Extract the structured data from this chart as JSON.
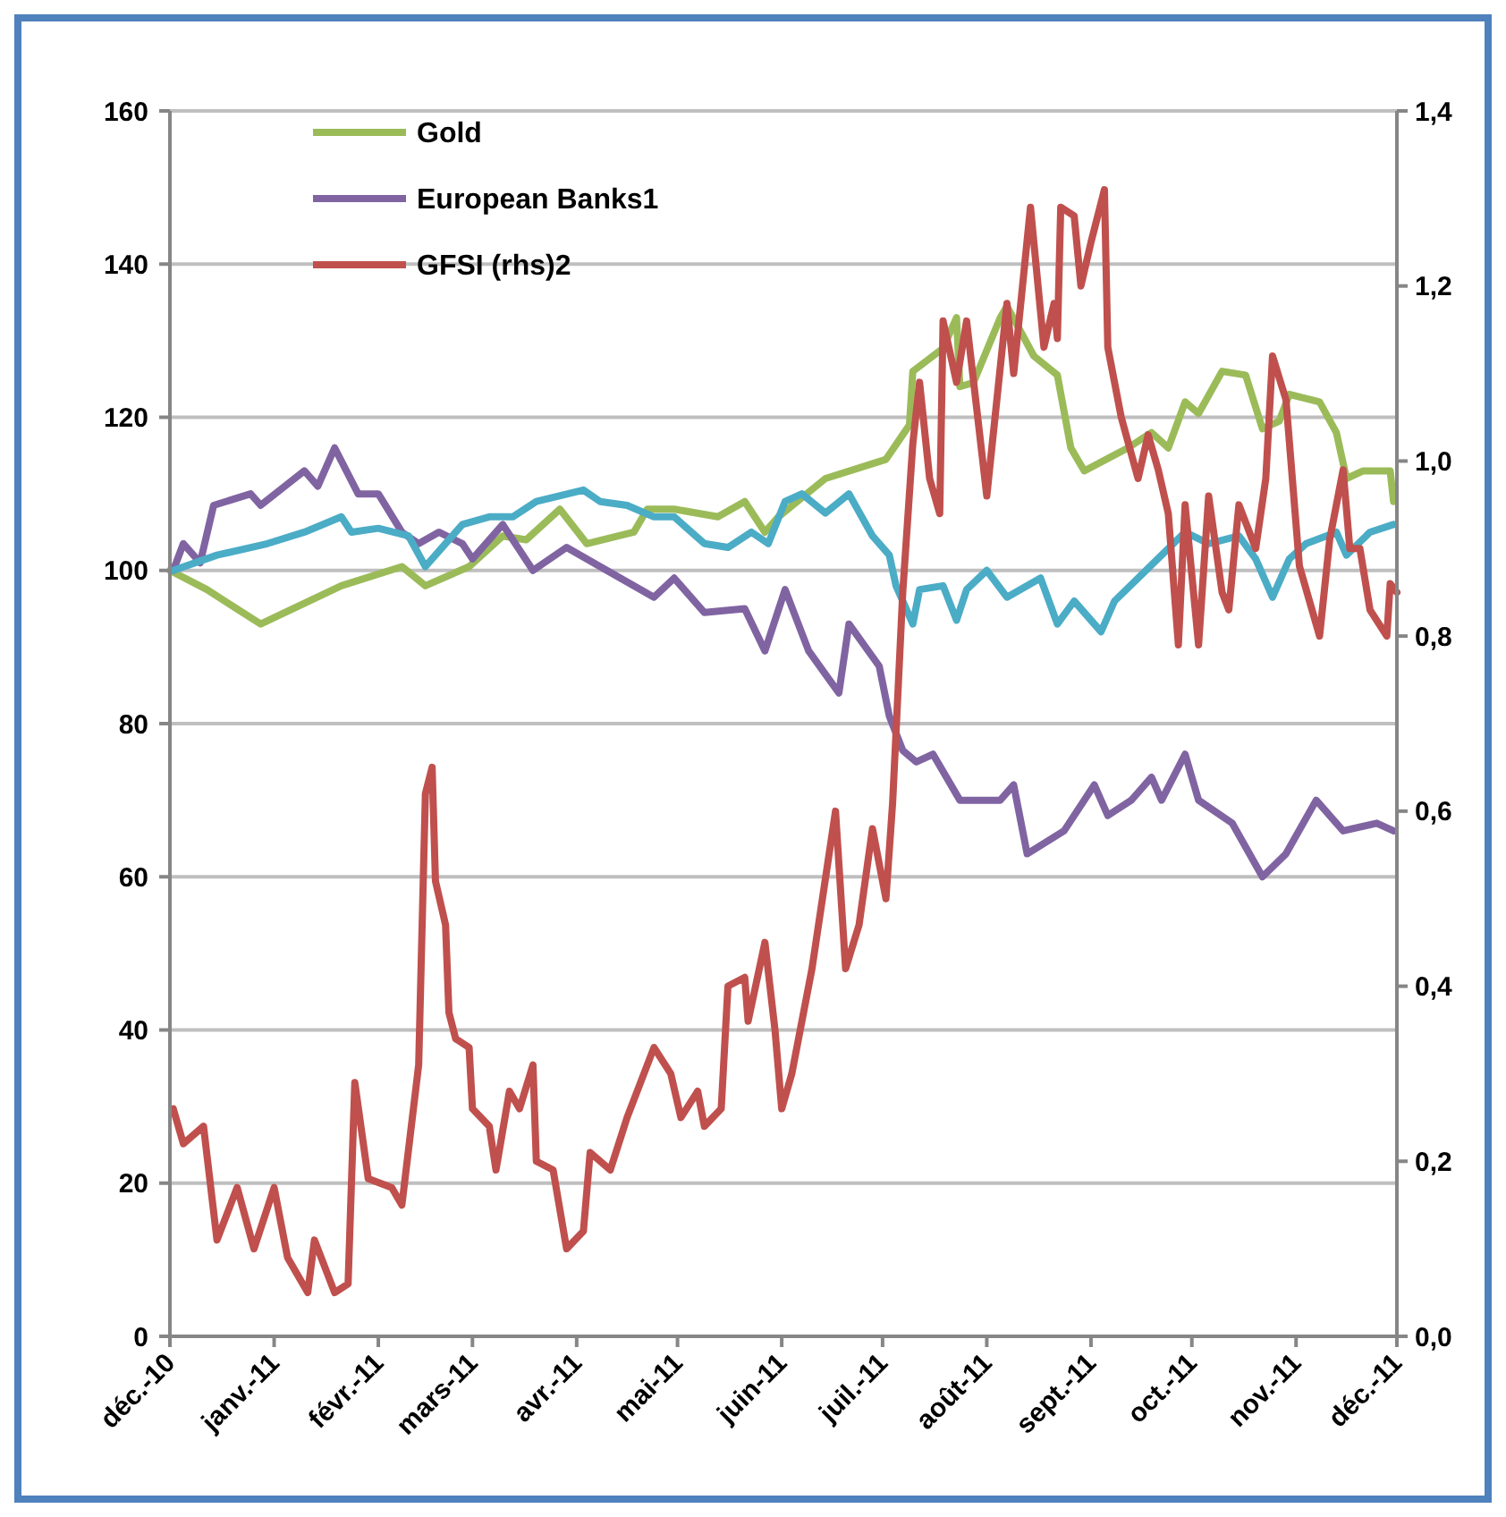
{
  "chart_data": {
    "type": "line",
    "legend": "top left",
    "grid": "y",
    "line_style": "solid",
    "marker": "none",
    "xlim": [
      "2010-12-01",
      "2011-12-01"
    ],
    "xticks": [
      {
        "value": "2010-12-01",
        "label": "déc.-10"
      },
      {
        "value": "2011-01-01",
        "label": "janv.-11"
      },
      {
        "value": "2011-02-01",
        "label": "févr.-11"
      },
      {
        "value": "2011-03-01",
        "label": "mars-11"
      },
      {
        "value": "2011-04-01",
        "label": "avr.-11"
      },
      {
        "value": "2011-05-01",
        "label": "mai-11"
      },
      {
        "value": "2011-06-01",
        "label": "juin-11"
      },
      {
        "value": "2011-07-01",
        "label": "juil.-11"
      },
      {
        "value": "2011-08-01",
        "label": "août-11"
      },
      {
        "value": "2011-09-01",
        "label": "sept.-11"
      },
      {
        "value": "2011-10-01",
        "label": "oct.-11"
      },
      {
        "value": "2011-11-01",
        "label": "nov.-11"
      },
      {
        "value": "2011-12-01",
        "label": "déc.-11"
      }
    ],
    "ylim": [
      0,
      160
    ],
    "yticks": [
      0,
      20,
      40,
      60,
      80,
      100,
      120,
      140,
      160
    ],
    "y2lim": [
      0,
      1.4
    ],
    "y2ticks": [
      {
        "value": 0,
        "label": "0,0"
      },
      {
        "value": 0.2,
        "label": "0,2"
      },
      {
        "value": 0.4,
        "label": "0,4"
      },
      {
        "value": 0.6,
        "label": "0,6"
      },
      {
        "value": 0.8,
        "label": "0,8"
      },
      {
        "value": 1.0,
        "label": "1,0"
      },
      {
        "value": 1.2,
        "label": "1,2"
      },
      {
        "value": 1.4,
        "label": "1,4"
      }
    ],
    "series": [
      {
        "name": "Gold",
        "color": "#9bbb59",
        "x": [
          "2010-12-01",
          "2010-12-12",
          "2010-12-28",
          "2011-01-21",
          "2011-02-08",
          "2011-02-15",
          "2011-02-28",
          "2011-03-10",
          "2011-03-17",
          "2011-03-27",
          "2011-04-04",
          "2011-04-18",
          "2011-04-22",
          "2011-04-30",
          "2011-05-13",
          "2011-05-21",
          "2011-05-27",
          "2011-05-31",
          "2011-06-14",
          "2011-07-02",
          "2011-07-09",
          "2011-07-10",
          "2011-07-19",
          "2011-07-23",
          "2011-07-24",
          "2011-07-28",
          "2011-08-05",
          "2011-08-07",
          "2011-08-15",
          "2011-08-22",
          "2011-08-26",
          "2011-08-30",
          "2011-09-12",
          "2011-09-19",
          "2011-09-24",
          "2011-09-29",
          "2011-10-03",
          "2011-10-10",
          "2011-10-17",
          "2011-10-22",
          "2011-10-27",
          "2011-10-30",
          "2011-11-08",
          "2011-11-13",
          "2011-11-16",
          "2011-11-21",
          "2011-11-29",
          "2011-11-30"
        ],
        "values": [
          100,
          97.5,
          93,
          98,
          100.5,
          98,
          100.5,
          104.5,
          104,
          108,
          103.5,
          105,
          108,
          108,
          107,
          109,
          105,
          107,
          112,
          114.5,
          119,
          126,
          129,
          133,
          124,
          124.5,
          133,
          134.5,
          128,
          125.5,
          116,
          113,
          116,
          118,
          116,
          122,
          120.5,
          126,
          125.5,
          118.5,
          119.5,
          123,
          122,
          118,
          112,
          113,
          113,
          109
        ]
      },
      {
        "name": "European Banks1",
        "color": "#8064a2",
        "x": [
          "2010-12-02",
          "2010-12-05",
          "2010-12-10",
          "2010-12-14",
          "2010-12-25",
          "2010-12-28",
          "2011-01-10",
          "2011-01-14",
          "2011-01-19",
          "2011-01-26",
          "2011-02-01",
          "2011-02-08",
          "2011-02-13",
          "2011-02-19",
          "2011-02-26",
          "2011-03-01",
          "2011-03-10",
          "2011-03-19",
          "2011-03-29",
          "2011-04-08",
          "2011-04-24",
          "2011-04-30",
          "2011-05-09",
          "2011-05-21",
          "2011-05-27",
          "2011-06-02",
          "2011-06-09",
          "2011-06-18",
          "2011-06-21",
          "2011-06-30",
          "2011-07-03",
          "2011-07-07",
          "2011-07-11",
          "2011-07-16",
          "2011-07-24",
          "2011-08-05",
          "2011-08-09",
          "2011-08-13",
          "2011-08-24",
          "2011-09-02",
          "2011-09-06",
          "2011-09-13",
          "2011-09-19",
          "2011-09-22",
          "2011-09-29",
          "2011-10-03",
          "2011-10-13",
          "2011-10-22",
          "2011-10-29",
          "2011-11-07",
          "2011-11-15",
          "2011-11-25",
          "2011-11-30"
        ],
        "values": [
          100,
          103.5,
          101,
          108.5,
          110,
          108.5,
          113,
          111,
          116,
          110,
          110,
          105,
          103.5,
          105,
          103.5,
          101.5,
          106,
          100,
          103,
          100.5,
          96.5,
          99,
          94.5,
          95,
          89.5,
          97.5,
          89.5,
          84,
          93,
          87.5,
          81,
          76.5,
          75,
          76,
          70,
          70,
          72,
          63,
          66,
          72,
          68,
          70,
          73,
          70,
          76,
          70,
          67,
          60,
          63,
          70,
          66,
          67,
          66
        ]
      },
      {
        "color": "#4bacc6",
        "x": [
          "2010-12-02",
          "2010-12-15",
          "2010-12-30",
          "2011-01-10",
          "2011-01-21",
          "2011-01-24",
          "2011-02-01",
          "2011-02-10",
          "2011-02-15",
          "2011-02-26",
          "2011-03-06",
          "2011-03-13",
          "2011-03-20",
          "2011-04-03",
          "2011-04-08",
          "2011-04-16",
          "2011-04-24",
          "2011-04-30",
          "2011-05-09",
          "2011-05-16",
          "2011-05-23",
          "2011-05-28",
          "2011-06-02",
          "2011-06-07",
          "2011-06-14",
          "2011-06-21",
          "2011-06-28",
          "2011-07-03",
          "2011-07-05",
          "2011-07-10",
          "2011-07-12",
          "2011-07-19",
          "2011-07-23",
          "2011-07-26",
          "2011-08-01",
          "2011-08-07",
          "2011-08-17",
          "2011-08-22",
          "2011-08-27",
          "2011-09-04",
          "2011-09-08",
          "2011-09-15",
          "2011-09-22",
          "2011-09-29",
          "2011-10-06",
          "2011-10-15",
          "2011-10-20",
          "2011-10-25",
          "2011-10-30",
          "2011-11-04",
          "2011-11-13",
          "2011-11-16",
          "2011-11-23",
          "2011-11-30"
        ],
        "values": [
          100,
          102,
          103.5,
          105,
          107,
          105,
          105.5,
          104.5,
          100.5,
          106,
          107,
          107,
          109,
          110.5,
          109,
          108.5,
          107,
          107,
          103.5,
          103,
          105,
          103.5,
          109,
          110,
          107.5,
          110,
          104.5,
          102,
          98,
          93,
          97.5,
          98,
          93.5,
          97.5,
          100,
          96.5,
          99,
          93,
          96,
          92,
          96,
          99,
          102,
          105,
          103.5,
          104.5,
          101.5,
          96.5,
          101.5,
          103.5,
          105,
          102,
          105,
          106
        ]
      },
      {
        "name": "GFSI (rhs)2",
        "color": "#c0504d",
        "axis": "y2",
        "x": [
          "2010-12-02",
          "2010-12-05",
          "2010-12-11",
          "2010-12-15",
          "2010-12-21",
          "2010-12-26",
          "2011-01-01",
          "2011-01-05",
          "2011-01-11",
          "2011-01-13",
          "2011-01-19",
          "2011-01-23",
          "2011-01-25",
          "2011-01-29",
          "2011-02-05",
          "2011-02-08",
          "2011-02-13",
          "2011-02-15",
          "2011-02-17",
          "2011-02-18",
          "2011-02-21",
          "2011-02-22",
          "2011-02-24",
          "2011-02-28",
          "2011-03-01",
          "2011-03-06",
          "2011-03-08",
          "2011-03-12",
          "2011-03-15",
          "2011-03-19",
          "2011-03-20",
          "2011-03-25",
          "2011-03-29",
          "2011-04-03",
          "2011-04-05",
          "2011-04-11",
          "2011-04-16",
          "2011-04-24",
          "2011-04-29",
          "2011-05-02",
          "2011-05-07",
          "2011-05-09",
          "2011-05-14",
          "2011-05-16",
          "2011-05-21",
          "2011-05-22",
          "2011-05-27",
          "2011-05-30",
          "2011-06-01",
          "2011-06-04",
          "2011-06-10",
          "2011-06-17",
          "2011-06-20",
          "2011-06-24",
          "2011-06-28",
          "2011-07-02",
          "2011-07-04",
          "2011-07-07",
          "2011-07-10",
          "2011-07-12",
          "2011-07-15",
          "2011-07-18",
          "2011-07-19",
          "2011-07-23",
          "2011-07-26",
          "2011-08-01",
          "2011-08-07",
          "2011-08-09",
          "2011-08-14",
          "2011-08-18",
          "2011-08-21",
          "2011-08-22",
          "2011-08-23",
          "2011-08-27",
          "2011-08-29",
          "2011-09-01",
          "2011-09-05",
          "2011-09-06",
          "2011-09-10",
          "2011-09-15",
          "2011-09-18",
          "2011-09-21",
          "2011-09-24",
          "2011-09-27",
          "2011-09-29",
          "2011-10-03",
          "2011-10-06",
          "2011-10-10",
          "2011-10-12",
          "2011-10-15",
          "2011-10-20",
          "2011-10-23",
          "2011-10-25",
          "2011-10-29",
          "2011-11-02",
          "2011-11-08",
          "2011-11-11",
          "2011-11-15",
          "2011-11-17",
          "2011-11-20",
          "2011-11-23",
          "2011-11-28",
          "2011-11-29",
          "2011-12-01"
        ],
        "values": [
          0.26,
          0.22,
          0.24,
          0.11,
          0.17,
          0.1,
          0.17,
          0.09,
          0.05,
          0.11,
          0.05,
          0.06,
          0.29,
          0.18,
          0.17,
          0.15,
          0.31,
          0.62,
          0.65,
          0.52,
          0.47,
          0.37,
          0.34,
          0.33,
          0.26,
          0.24,
          0.19,
          0.28,
          0.26,
          0.31,
          0.2,
          0.19,
          0.1,
          0.12,
          0.21,
          0.19,
          0.25,
          0.33,
          0.3,
          0.25,
          0.28,
          0.24,
          0.26,
          0.4,
          0.41,
          0.36,
          0.45,
          0.35,
          0.26,
          0.3,
          0.42,
          0.6,
          0.42,
          0.47,
          0.58,
          0.5,
          0.61,
          0.85,
          1.02,
          1.09,
          0.98,
          0.94,
          1.16,
          1.09,
          1.16,
          0.96,
          1.18,
          1.1,
          1.29,
          1.13,
          1.18,
          1.14,
          1.29,
          1.28,
          1.2,
          1.25,
          1.31,
          1.13,
          1.05,
          0.98,
          1.03,
          0.99,
          0.94,
          0.79,
          0.95,
          0.79,
          0.96,
          0.85,
          0.83,
          0.95,
          0.9,
          0.98,
          1.12,
          1.07,
          0.88,
          0.8,
          0.91,
          0.99,
          0.9,
          0.9,
          0.83,
          0.8,
          0.86,
          0.85
        ]
      }
    ]
  }
}
